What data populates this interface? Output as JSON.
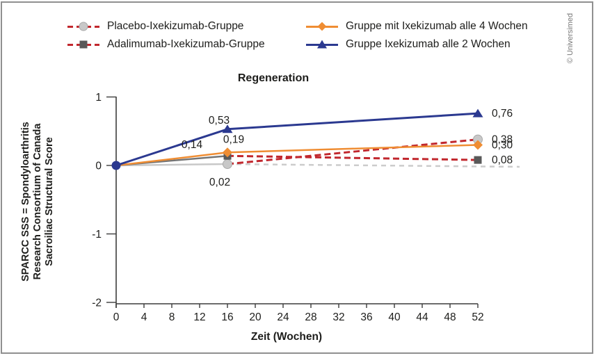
{
  "figure": {
    "copyright": "© Universimed"
  },
  "colors": {
    "navy": "#2b3990",
    "orange": "#ef8d33",
    "switch_dash_red": "#c1272d",
    "placebo_gray": "#c8c8c8",
    "adalimumab_gray": "#595959",
    "axis": "#3c3c3b",
    "text": "#1d1d1b",
    "copyright_gray": "#787878"
  },
  "legend": {
    "items": [
      {
        "label": "Placebo-Ixekizumab-Gruppe",
        "marker": "circle",
        "marker_color": "#c8c8c8",
        "line_style": "dashed",
        "line_color": "#c1272d"
      },
      {
        "label": "Adalimumab-Ixekizumab-Gruppe",
        "marker": "square",
        "marker_color": "#595959",
        "line_style": "dashed",
        "line_color": "#c1272d"
      },
      {
        "label": "Gruppe mit Ixekizumab alle 4 Wochen",
        "marker": "diamond",
        "marker_color": "#ef8d33",
        "line_style": "solid",
        "line_color": "#ef8d33"
      },
      {
        "label": "Gruppe Ixekizumab alle 2 Wochen",
        "marker": "triangle",
        "marker_color": "#2b3990",
        "line_style": "solid",
        "line_color": "#2b3990"
      }
    ]
  },
  "chart_data": {
    "type": "line",
    "title": "Regeneration",
    "xlabel": "Zeit (Wochen)",
    "ylabel": "SPARCC SSS = Spondyloarthritis Research Consortium of Canada Sacroiliac Structural Score",
    "ylabel_lines": [
      "SPARCC SSS = Spondyloarthritis",
      "Research Consortium of Canada",
      "Sacroiliac Structural Score"
    ],
    "xlim": [
      0,
      52
    ],
    "ylim": [
      -2,
      1
    ],
    "x_ticks": [
      0,
      4,
      8,
      12,
      16,
      20,
      24,
      28,
      32,
      36,
      40,
      44,
      48,
      52
    ],
    "y_ticks": [
      1,
      0,
      -1,
      -2
    ],
    "grid": false,
    "legend_position": "top",
    "series": [
      {
        "name": "Placebo-Ixekizumab-Gruppe",
        "marker": "circle",
        "marker_color": "#c8c8c8",
        "marker_edge": "#a9a9a9",
        "points": [
          {
            "x": 0,
            "y": 0,
            "marker": "none"
          },
          {
            "x": 16,
            "y": 0.02,
            "label": "0,02",
            "label_dx": -11,
            "label_dy": 31,
            "label_anchor": "middle"
          },
          {
            "x": 52,
            "y": 0.38,
            "label": "0,38",
            "label_dx": 20,
            "label_dy": 5,
            "label_anchor": "start"
          }
        ],
        "segments": [
          {
            "from": 0,
            "to": 1,
            "color": "#c8c8c8",
            "dash": false,
            "width": 2.5
          },
          {
            "from": 1,
            "to": 2,
            "color": "#c1272d",
            "dash": true,
            "width": 3
          }
        ]
      },
      {
        "name": "Adalimumab-Ixekizumab-Gruppe",
        "marker": "square",
        "marker_color": "#595959",
        "points": [
          {
            "x": 0,
            "y": 0,
            "marker": "none"
          },
          {
            "x": 16,
            "y": 0.14,
            "label": "0,14",
            "label_dx": -51,
            "label_dy": -11,
            "label_anchor": "middle"
          },
          {
            "x": 52,
            "y": 0.08,
            "label": "0,08",
            "label_dx": 20,
            "label_dy": 5,
            "label_anchor": "start"
          }
        ],
        "segments": [
          {
            "from": 0,
            "to": 1,
            "color": "#757575",
            "dash": false,
            "width": 2.5
          },
          {
            "from": 1,
            "to": 2,
            "color": "#c1272d",
            "dash": true,
            "width": 3
          }
        ]
      },
      {
        "name": "Gruppe mit Ixekizumab alle 4 Wochen",
        "marker": "diamond",
        "marker_color": "#ef8d33",
        "points": [
          {
            "x": 0,
            "y": 0,
            "marker": "none"
          },
          {
            "x": 16,
            "y": 0.19,
            "label": "0,19",
            "label_dx": 9,
            "label_dy": -14,
            "label_anchor": "middle"
          },
          {
            "x": 52,
            "y": 0.3,
            "label": "0,30",
            "label_dx": 20,
            "label_dy": 5,
            "label_anchor": "start"
          }
        ],
        "segments": [
          {
            "from": 0,
            "to": 1,
            "color": "#ef8d33",
            "dash": false,
            "width": 2.5
          },
          {
            "from": 1,
            "to": 2,
            "color": "#ef8d33",
            "dash": false,
            "width": 2.5
          }
        ]
      },
      {
        "name": "Gruppe Ixekizumab alle 2 Wochen",
        "marker": "triangle",
        "marker_color": "#2b3990",
        "points": [
          {
            "x": 0,
            "y": 0,
            "marker": "circle_solid"
          },
          {
            "x": 16,
            "y": 0.53,
            "label": "0,53",
            "label_dx": -12,
            "label_dy": -8,
            "label_anchor": "middle"
          },
          {
            "x": 52,
            "y": 0.76,
            "label": "0,76",
            "label_dx": 20,
            "label_dy": 5,
            "label_anchor": "start"
          }
        ],
        "segments": [
          {
            "from": 0,
            "to": 1,
            "color": "#2b3990",
            "dash": false,
            "width": 3
          },
          {
            "from": 1,
            "to": 2,
            "color": "#2b3990",
            "dash": false,
            "width": 3
          }
        ]
      }
    ],
    "baseline_extension": {
      "color": "#cccccc",
      "dash": true,
      "width": 2.5,
      "points": [
        {
          "x": 16,
          "y": 0.02
        },
        {
          "x": 58,
          "y": -0.02
        }
      ]
    }
  }
}
